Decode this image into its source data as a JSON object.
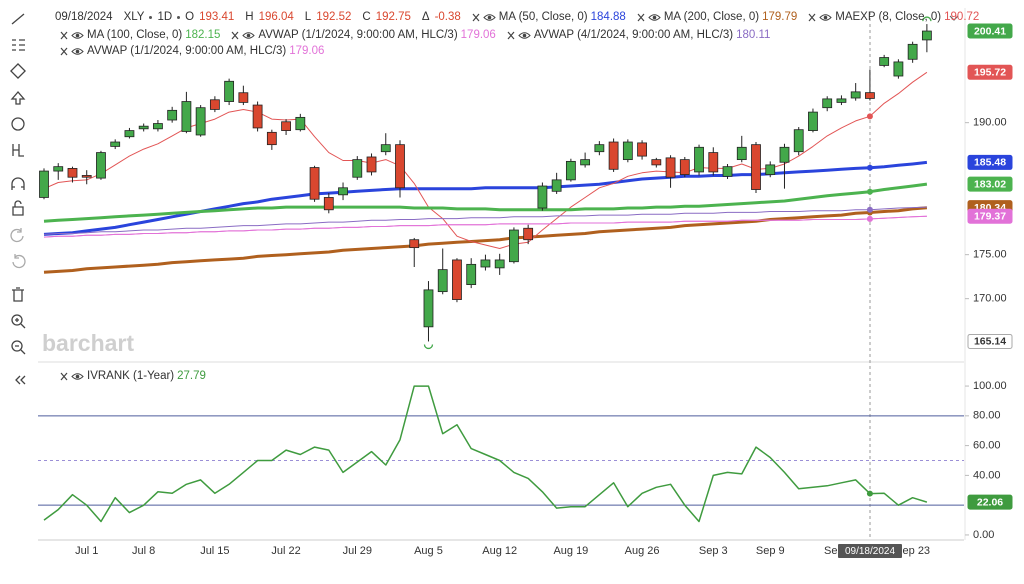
{
  "header": {
    "date": "09/18/2024",
    "symbol": "XLY",
    "interval": "1D",
    "open_label": "O",
    "high_label": "H",
    "low_label": "L",
    "close_label": "C",
    "change_label": "Δ",
    "change": -0.38
  },
  "watermark": "barchart",
  "chart_data": [
    {
      "type": "candlestick",
      "categories": [
        null,
        null,
        null,
        "Jul 1",
        null,
        null,
        null,
        "Jul 8",
        null,
        null,
        null,
        null,
        "Jul 15",
        null,
        null,
        null,
        null,
        "Jul 22",
        null,
        null,
        null,
        null,
        "Jul 29",
        null,
        null,
        null,
        null,
        "Aug 5",
        null,
        null,
        null,
        null,
        "Aug 12",
        null,
        null,
        null,
        null,
        "Aug 19",
        null,
        null,
        null,
        null,
        "Aug 26",
        null,
        null,
        null,
        null,
        "Sep 3",
        null,
        null,
        null,
        "Sep 9",
        null,
        null,
        null,
        null,
        "Sep 16",
        null,
        null,
        null,
        null,
        "Sep 23",
        null
      ],
      "open": [
        181.5,
        184.5,
        184.8,
        184.0,
        183.7,
        187.3,
        188.4,
        189.3,
        189.3,
        190.3,
        189.0,
        188.6,
        192.6,
        192.4,
        193.4,
        192.0,
        188.9,
        190.1,
        189.2,
        184.9,
        181.5,
        181.8,
        183.8,
        186.1,
        186.7,
        187.5,
        176.7,
        166.8,
        170.8,
        174.4,
        171.6,
        173.6,
        173.5,
        174.2,
        178.0,
        180.3,
        182.2,
        183.5,
        185.2,
        186.7,
        187.8,
        185.8,
        187.7,
        185.8,
        186.0,
        185.8,
        184.4,
        186.6,
        183.9,
        185.8,
        187.5,
        184.1,
        185.5,
        186.7,
        189.1,
        191.7,
        192.3,
        192.8,
        193.41,
        196.5,
        195.3,
        197.2,
        199.4
      ],
      "high": [
        184.8,
        185.4,
        185.0,
        184.6,
        186.8,
        188.1,
        189.4,
        189.9,
        190.3,
        191.8,
        193.5,
        192.0,
        193.0,
        195.0,
        194.2,
        192.4,
        189.2,
        190.4,
        191.0,
        185.1,
        182.0,
        183.2,
        186.2,
        186.5,
        188.8,
        188.0,
        176.9,
        172.0,
        175.7,
        174.6,
        174.6,
        175.0,
        175.1,
        178.1,
        178.4,
        183.2,
        184.3,
        185.9,
        186.6,
        187.9,
        188.2,
        188.1,
        188.0,
        186.0,
        186.3,
        186.1,
        187.5,
        187.2,
        185.3,
        188.5,
        187.8,
        185.6,
        187.6,
        189.5,
        191.6,
        193.0,
        193.1,
        194.5,
        196.04,
        197.7,
        197.2,
        199.2,
        201.2
      ],
      "low": [
        181.3,
        183.5,
        183.2,
        183.0,
        183.5,
        187.0,
        188.2,
        189.0,
        189.0,
        190.0,
        188.8,
        188.4,
        191.2,
        192.0,
        192.0,
        189.0,
        186.9,
        188.6,
        189.0,
        181.0,
        179.7,
        181.2,
        183.5,
        184.0,
        186.3,
        181.5,
        173.6,
        165.14,
        170.5,
        169.6,
        171.2,
        173.2,
        172.7,
        174.0,
        176.2,
        180.0,
        181.9,
        183.3,
        184.9,
        186.3,
        184.4,
        185.5,
        185.8,
        184.9,
        182.6,
        183.8,
        184.0,
        184.0,
        183.6,
        185.5,
        182.0,
        183.8,
        182.5,
        186.3,
        188.9,
        191.3,
        192.0,
        192.5,
        192.52,
        196.3,
        195.0,
        196.8,
        198.0
      ],
      "close": [
        184.5,
        185.0,
        183.8,
        183.8,
        186.6,
        187.8,
        189.1,
        189.6,
        189.9,
        191.4,
        192.4,
        191.7,
        191.5,
        194.7,
        192.3,
        189.4,
        187.5,
        189.1,
        190.6,
        181.3,
        180.1,
        182.6,
        185.8,
        184.4,
        187.5,
        182.6,
        175.8,
        171.0,
        173.3,
        169.9,
        173.9,
        174.4,
        174.4,
        177.8,
        176.7,
        182.8,
        183.5,
        185.6,
        185.8,
        187.5,
        184.7,
        187.8,
        186.2,
        185.2,
        183.8,
        184.1,
        187.2,
        184.4,
        185.0,
        187.2,
        182.4,
        185.2,
        187.2,
        189.2,
        191.2,
        192.7,
        192.7,
        193.5,
        192.75,
        197.4,
        196.9,
        198.9,
        200.41
      ],
      "up_color": "#43a84a",
      "down_color": "#d9472f",
      "series": [
        {
          "name": "MA (50, Close, 0)",
          "color": "#2a44dc",
          "width": 3,
          "price_box": true,
          "values": [
            177.3,
            177.4,
            177.5,
            177.7,
            177.9,
            178.1,
            178.4,
            178.7,
            179.0,
            179.3,
            179.6,
            179.9,
            180.2,
            180.5,
            180.8,
            181.0,
            181.3,
            181.5,
            181.7,
            181.9,
            182.0,
            182.1,
            182.2,
            182.3,
            182.4,
            182.5,
            182.5,
            182.5,
            182.5,
            182.5,
            182.5,
            182.6,
            182.6,
            182.6,
            182.6,
            182.6,
            182.7,
            182.8,
            182.9,
            183.0,
            183.2,
            183.4,
            183.6,
            183.7,
            183.8,
            183.9,
            183.9,
            184.0,
            184.0,
            184.1,
            184.1,
            184.2,
            184.3,
            184.4,
            184.5,
            184.6,
            184.7,
            184.8,
            184.88,
            185.0,
            185.15,
            185.3,
            185.48
          ]
        },
        {
          "name": "MA (200, Close, 0)",
          "color": "#b0601e",
          "width": 3,
          "price_box": true,
          "values": [
            173.0,
            173.1,
            173.2,
            173.4,
            173.5,
            173.6,
            173.7,
            173.8,
            173.9,
            174.1,
            174.2,
            174.3,
            174.4,
            174.5,
            174.6,
            174.8,
            174.9,
            175.0,
            175.1,
            175.2,
            175.3,
            175.5,
            175.6,
            175.7,
            175.8,
            175.9,
            176.0,
            176.2,
            176.3,
            176.4,
            176.5,
            176.6,
            176.7,
            176.9,
            177.0,
            177.1,
            177.2,
            177.3,
            177.4,
            177.6,
            177.7,
            177.8,
            177.9,
            178.0,
            178.1,
            178.3,
            178.4,
            178.5,
            178.6,
            178.7,
            178.8,
            179.0,
            179.1,
            179.2,
            179.3,
            179.4,
            179.5,
            179.7,
            179.79,
            179.9,
            180.0,
            180.2,
            180.34
          ]
        },
        {
          "name": "MAEXP (8, Close, 0)",
          "color": "#e25555",
          "width": 1,
          "price_box": true,
          "values": [
            182.5,
            183.2,
            183.4,
            183.5,
            184.2,
            185.2,
            186.2,
            187.0,
            187.6,
            188.5,
            189.4,
            189.9,
            190.4,
            191.2,
            191.5,
            191.2,
            190.4,
            190.3,
            190.4,
            188.4,
            186.6,
            185.7,
            185.7,
            185.4,
            185.8,
            185.1,
            183.1,
            180.4,
            179.1,
            177.1,
            176.5,
            176.1,
            175.7,
            176.2,
            176.4,
            177.8,
            179.1,
            180.4,
            181.5,
            182.6,
            183.1,
            183.9,
            184.3,
            184.5,
            184.4,
            184.3,
            184.9,
            184.8,
            184.8,
            185.3,
            184.7,
            184.8,
            185.3,
            186.2,
            187.3,
            188.5,
            189.4,
            190.2,
            190.72,
            192.2,
            193.3,
            194.6,
            195.72
          ]
        },
        {
          "name": "MA (100, Close, 0)",
          "color": "#4cb34f",
          "width": 3,
          "price_box": true,
          "values": [
            178.8,
            178.9,
            179.0,
            179.1,
            179.2,
            179.3,
            179.4,
            179.5,
            179.6,
            179.7,
            179.8,
            179.9,
            180.0,
            180.1,
            180.2,
            180.3,
            180.3,
            180.4,
            180.4,
            180.4,
            180.4,
            180.4,
            180.4,
            180.4,
            180.4,
            180.4,
            180.3,
            180.3,
            180.3,
            180.2,
            180.2,
            180.2,
            180.1,
            180.1,
            180.1,
            180.1,
            180.1,
            180.1,
            180.2,
            180.2,
            180.2,
            180.3,
            180.3,
            180.4,
            180.4,
            180.5,
            180.5,
            180.6,
            180.7,
            180.8,
            180.9,
            181.0,
            181.1,
            181.3,
            181.5,
            181.7,
            181.85,
            182.0,
            182.15,
            182.4,
            182.6,
            182.8,
            183.02
          ]
        },
        {
          "name": "AVWAP (1/1/2024, 9:00:00 AM, HLC/3)",
          "color": "#e272d8",
          "width": 1,
          "price_box": false,
          "values": [
            177.0,
            177.1,
            177.1,
            177.2,
            177.2,
            177.3,
            177.3,
            177.4,
            177.4,
            177.5,
            177.5,
            177.6,
            177.6,
            177.7,
            177.7,
            177.8,
            177.8,
            177.9,
            177.9,
            178.0,
            178.0,
            178.1,
            178.1,
            178.2,
            178.2,
            178.3,
            178.3,
            178.3,
            178.4,
            178.4,
            178.4,
            178.4,
            178.5,
            178.5,
            178.5,
            178.5,
            178.5,
            178.6,
            178.6,
            178.6,
            178.6,
            178.7,
            178.7,
            178.7,
            178.7,
            178.8,
            178.8,
            178.8,
            178.8,
            178.9,
            178.9,
            178.9,
            178.9,
            178.9,
            179.0,
            179.0,
            179.0,
            179.0,
            179.06,
            179.14,
            179.22,
            179.3,
            179.37
          ]
        },
        {
          "name": "AVWAP (4/1/2024, 9:00:00 AM, HLC/3)",
          "color": "#8a6cc4",
          "width": 1,
          "price_box": false,
          "values": [
            177.3,
            177.4,
            177.4,
            177.5,
            177.6,
            177.6,
            177.7,
            177.8,
            177.8,
            177.9,
            178.0,
            178.0,
            178.1,
            178.2,
            178.3,
            178.3,
            178.4,
            178.5,
            178.5,
            178.6,
            178.7,
            178.7,
            178.8,
            178.9,
            178.9,
            179.0,
            179.0,
            179.1,
            179.1,
            179.1,
            179.2,
            179.2,
            179.2,
            179.3,
            179.3,
            179.3,
            179.4,
            179.4,
            179.4,
            179.5,
            179.5,
            179.5,
            179.6,
            179.6,
            179.6,
            179.7,
            179.7,
            179.7,
            179.8,
            179.8,
            179.8,
            179.9,
            179.9,
            179.9,
            180.0,
            180.0,
            180.0,
            180.1,
            180.11,
            180.2,
            180.3,
            180.35,
            180.4
          ]
        },
        {
          "name": "AVWAP (1/1/2024, 9:00:00 AM, HLC/3)",
          "color": "#e272d8",
          "width": 1,
          "price_box": true,
          "values": [
            177.0,
            177.1,
            177.1,
            177.2,
            177.2,
            177.3,
            177.3,
            177.4,
            177.4,
            177.5,
            177.5,
            177.6,
            177.6,
            177.7,
            177.7,
            177.8,
            177.8,
            177.9,
            177.9,
            178.0,
            178.0,
            178.1,
            178.1,
            178.2,
            178.2,
            178.3,
            178.3,
            178.3,
            178.4,
            178.4,
            178.4,
            178.4,
            178.5,
            178.5,
            178.5,
            178.5,
            178.5,
            178.6,
            178.6,
            178.6,
            178.6,
            178.7,
            178.7,
            178.7,
            178.7,
            178.8,
            178.8,
            178.8,
            178.8,
            178.9,
            178.9,
            178.9,
            178.9,
            178.9,
            179.0,
            179.0,
            179.0,
            179.0,
            179.06,
            179.14,
            179.22,
            179.3,
            179.37
          ]
        }
      ],
      "ylim": [
        163.6,
        202.8
      ],
      "yticks": [
        {
          "value": 170,
          "label": "170.00"
        },
        {
          "value": 175,
          "label": "175.00"
        },
        {
          "value": 190,
          "label": "190.00"
        }
      ],
      "grid": false
    },
    {
      "type": "line",
      "series": [
        {
          "name": "IVRANK (1-Year)",
          "color": "#3f9b3f",
          "width": 1.5,
          "price_box": true,
          "values": [
            10,
            17,
            27,
            20,
            9,
            25,
            15,
            20,
            29,
            28,
            34,
            37,
            28,
            34,
            42,
            50,
            50,
            57,
            54,
            59,
            57,
            42,
            49,
            56,
            47,
            64,
            100,
            100,
            68,
            74,
            58,
            54,
            50,
            42,
            38,
            29,
            18,
            19,
            19,
            27,
            35,
            19,
            28,
            32,
            34,
            20,
            9,
            40,
            42,
            41,
            59,
            52,
            42,
            31,
            32,
            33,
            35,
            37,
            27.79,
            28,
            20,
            25,
            22.06
          ]
        }
      ],
      "ylim": [
        -3.4,
        103.4
      ],
      "yticks": [
        {
          "value": 0,
          "label": "0.00"
        },
        {
          "value": 40,
          "label": "40.00"
        },
        {
          "value": 60,
          "label": "60.00"
        },
        {
          "value": 80,
          "label": "80.00"
        },
        {
          "value": 100,
          "label": "100.00"
        }
      ],
      "reference_lines": [
        {
          "value": 80,
          "style": "solid"
        },
        {
          "value": 50,
          "style": "dashed"
        },
        {
          "value": 20,
          "style": "solid"
        }
      ],
      "grid": false
    }
  ]
}
